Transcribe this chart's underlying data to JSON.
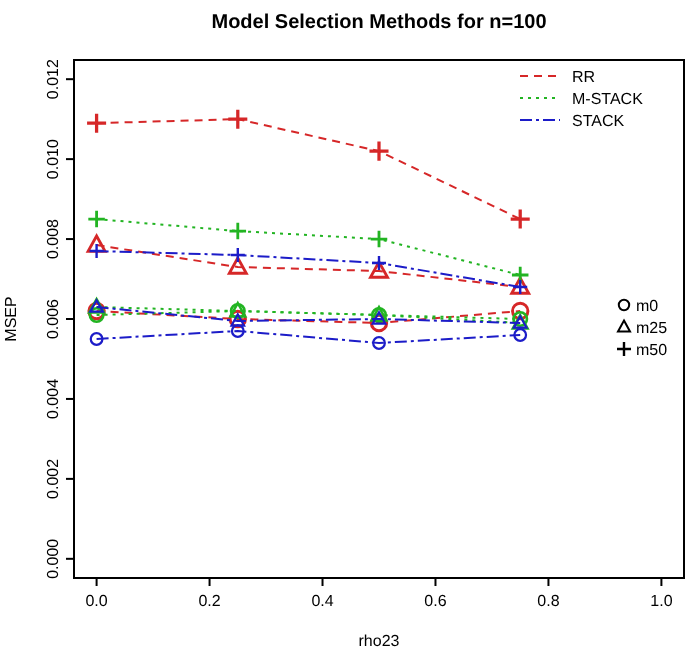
{
  "chart_data": {
    "type": "line",
    "title": "Model Selection Methods for n=100",
    "xlabel": "rho23",
    "ylabel": "MSEP",
    "x": [
      0,
      0.25,
      0.5,
      0.75
    ],
    "xlim": [
      -0.04,
      1.04
    ],
    "xticks": [
      {
        "value": 0,
        "label": "0.0"
      },
      {
        "value": 0.2,
        "label": "0.2"
      },
      {
        "value": 0.4,
        "label": "0.4"
      },
      {
        "value": 0.6,
        "label": "0.6"
      },
      {
        "value": 0.8,
        "label": "0.8"
      },
      {
        "value": 1,
        "label": "1.0"
      }
    ],
    "ylim": [
      -0.00048,
      0.01248
    ],
    "yticks": [
      {
        "value": 0,
        "label": "0.000"
      },
      {
        "value": 0.002,
        "label": "0.002"
      },
      {
        "value": 0.004,
        "label": "0.004"
      },
      {
        "value": 0.006,
        "label": "0.006"
      },
      {
        "value": 0.008,
        "label": "0.008"
      },
      {
        "value": 0.01,
        "label": "0.010"
      },
      {
        "value": 0.012,
        "label": "0.012"
      }
    ],
    "legend": "top right",
    "grid": false,
    "annotations": [
      "m0",
      "m25",
      "m50"
    ],
    "series": [
      {
        "name": "RR",
        "color": "#d62728",
        "line_style": "dashed",
        "marker": "circle",
        "values": [
          0.0062,
          0.006,
          0.0059,
          0.0062
        ]
      },
      {
        "color": "#d62728",
        "line_style": "dashed",
        "marker": "triangle",
        "values": [
          0.00785,
          0.0073,
          0.0072,
          0.0068
        ]
      },
      {
        "color": "#d62728",
        "line_style": "dashed",
        "marker": "cross",
        "values": [
          0.0109,
          0.011,
          0.0102,
          0.0085
        ]
      },
      {
        "name": "M-STACK",
        "color": "#22b422",
        "line_style": "dotted",
        "marker": "circle",
        "values": [
          0.0061,
          0.0062,
          0.0061,
          0.006
        ]
      },
      {
        "color": "#22b422",
        "line_style": "dotted",
        "marker": "triangle",
        "values": [
          0.0063,
          0.0062,
          0.0061,
          0.0059
        ]
      },
      {
        "color": "#22b422",
        "line_style": "dotted",
        "marker": "cross",
        "values": [
          0.0085,
          0.0082,
          0.008,
          0.0071
        ]
      },
      {
        "name": "STACK",
        "color": "#1c1cc8",
        "line_style": "dashdot",
        "marker": "circle",
        "values": [
          0.0055,
          0.0057,
          0.0054,
          0.0056
        ]
      },
      {
        "color": "#1c1cc8",
        "line_style": "dashdot",
        "marker": "triangle",
        "values": [
          0.0063,
          0.00595,
          0.006,
          0.0059
        ]
      },
      {
        "color": "#1c1cc8",
        "line_style": "dashdot",
        "marker": "cross",
        "values": [
          0.0077,
          0.0076,
          0.0074,
          0.0068
        ]
      }
    ]
  }
}
